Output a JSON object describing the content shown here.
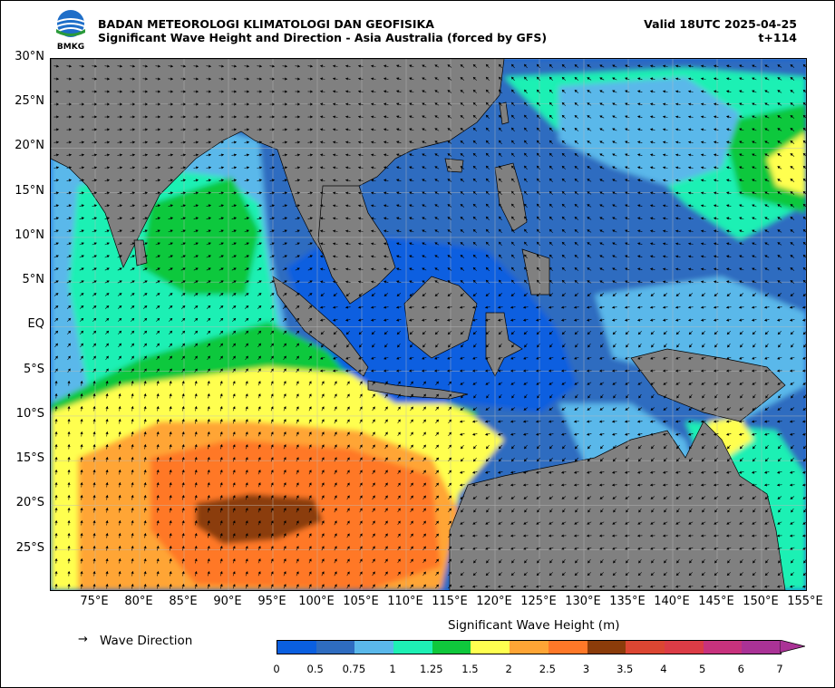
{
  "header": {
    "org_name": "BADAN METEOROLOGI KLIMATOLOGI DAN GEOFISIKA",
    "subtitle": "Significant Wave Height and Direction - Asia Australia (forced by GFS)",
    "valid": "Valid 18UTC 2025-04-25",
    "lead": "t+114",
    "logo_text": "BMKG"
  },
  "map": {
    "lat_labels": [
      "30°N",
      "25°N",
      "20°N",
      "15°N",
      "10°N",
      "5°N",
      "EQ",
      "5°S",
      "10°S",
      "15°S",
      "20°S",
      "25°S"
    ],
    "lon_labels": [
      "75°E",
      "80°E",
      "85°E",
      "90°E",
      "95°E",
      "100°E",
      "105°E",
      "110°E",
      "115°E",
      "120°E",
      "125°E",
      "130°E",
      "135°E",
      "140°E",
      "145°E",
      "150°E",
      "155°E"
    ],
    "lat_range": [
      -29.5,
      30
    ],
    "lon_range": [
      70,
      155
    ],
    "land_color": "#808080",
    "grid": true
  },
  "legend": {
    "arrow_symbol": "→",
    "wave_direction_label": "Wave Direction",
    "colorbar_title": "Significant Wave Height (m)",
    "colorbar_ticks": [
      "0",
      "0.5",
      "0.75",
      "1",
      "1.25",
      "1.5",
      "2",
      "2.5",
      "3",
      "3.5",
      "4",
      "5",
      "6",
      "7"
    ],
    "colorbar_colors": [
      "#0a5fe0",
      "#2e6cc0",
      "#5ab8ea",
      "#1ef0b4",
      "#0fc83c",
      "#ffff50",
      "#ffa535",
      "#ff7828",
      "#8b3c0a",
      "#dc4632",
      "#dc3c46",
      "#c8327d",
      "#aa3296"
    ]
  },
  "chart_data": {
    "type": "heatmap",
    "title": "Significant Wave Height and Direction - Asia Australia (forced by GFS)",
    "units": "m",
    "bins": [
      0,
      0.5,
      0.75,
      1,
      1.25,
      1.5,
      2,
      2.5,
      3,
      3.5,
      4,
      5,
      6,
      7
    ],
    "regions": [
      {
        "lon": 90,
        "lat": -21,
        "value": 3.2
      },
      {
        "lon": 97,
        "lat": -20,
        "value": 2.8
      },
      {
        "lon": 82,
        "lat": -14,
        "value": 2.2
      },
      {
        "lon": 80,
        "lat": -8,
        "value": 1.7
      },
      {
        "lon": 153,
        "lat": 16,
        "value": 1.7
      },
      {
        "lon": 145,
        "lat": -13,
        "value": 1.7
      },
      {
        "lon": 120,
        "lat": 0,
        "value": 0.3
      },
      {
        "lon": 128,
        "lat": 20,
        "value": 1.0
      }
    ]
  }
}
